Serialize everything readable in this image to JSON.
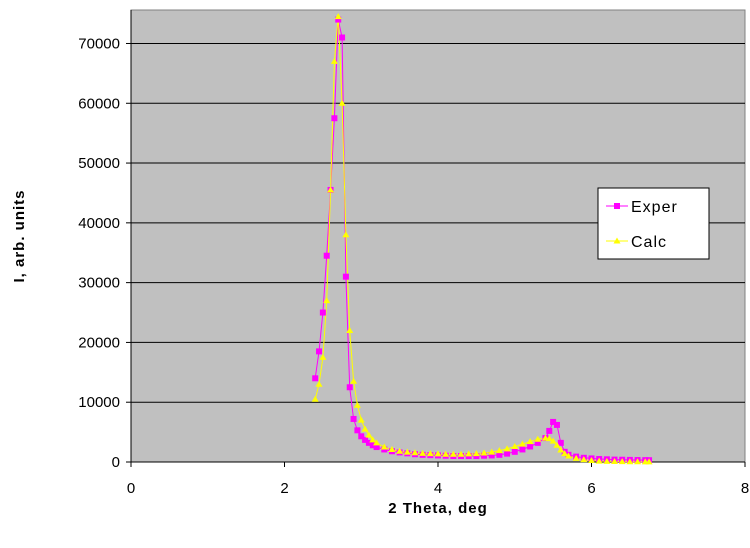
{
  "chart_data": {
    "type": "line",
    "title": "",
    "xlabel": "2 Theta, deg",
    "ylabel": "I, arb. units",
    "xlim": [
      0,
      8
    ],
    "ylim": [
      0,
      75000
    ],
    "xticks": [
      0,
      2,
      4,
      6,
      8
    ],
    "yticks": [
      0,
      10000,
      20000,
      30000,
      40000,
      50000,
      60000,
      70000
    ],
    "x_tick_labels": [
      "0",
      "2",
      "4",
      "6",
      "8"
    ],
    "y_tick_labels": [
      "0",
      "10000",
      "20000",
      "30000",
      "40000",
      "50000",
      "60000",
      "70000"
    ],
    "grid": "horizontal",
    "legend_position": "right",
    "plot_background": "#c0c0c0",
    "series": [
      {
        "name": "Exper",
        "color": "#ff00ff",
        "marker": "square",
        "x": [
          2.4,
          2.45,
          2.5,
          2.55,
          2.6,
          2.65,
          2.7,
          2.75,
          2.8,
          2.85,
          2.9,
          2.95,
          3.0,
          3.05,
          3.1,
          3.15,
          3.2,
          3.3,
          3.4,
          3.5,
          3.6,
          3.7,
          3.8,
          3.9,
          4.0,
          4.1,
          4.2,
          4.3,
          4.4,
          4.5,
          4.6,
          4.7,
          4.8,
          4.9,
          5.0,
          5.1,
          5.2,
          5.3,
          5.4,
          5.45,
          5.5,
          5.55,
          5.6,
          5.65,
          5.7,
          5.8,
          5.9,
          6.0,
          6.1,
          6.2,
          6.3,
          6.4,
          6.5,
          6.6,
          6.7,
          6.75
        ],
        "y": [
          14000,
          18500,
          25000,
          34500,
          45500,
          57500,
          74000,
          71000,
          31000,
          12500,
          7200,
          5300,
          4300,
          3700,
          3200,
          2800,
          2500,
          2100,
          1800,
          1600,
          1450,
          1300,
          1200,
          1150,
          1100,
          1050,
          1000,
          1000,
          1000,
          1000,
          1050,
          1100,
          1200,
          1400,
          1700,
          2100,
          2600,
          3200,
          4000,
          5200,
          6700,
          6200,
          3200,
          1700,
          1200,
          900,
          700,
          600,
          500,
          450,
          400,
          380,
          350,
          330,
          310,
          300
        ]
      },
      {
        "name": "Calc",
        "color": "#ffff00",
        "marker": "triangle",
        "x": [
          2.4,
          2.45,
          2.5,
          2.55,
          2.6,
          2.65,
          2.7,
          2.75,
          2.8,
          2.85,
          2.9,
          2.95,
          3.0,
          3.05,
          3.1,
          3.15,
          3.2,
          3.3,
          3.4,
          3.5,
          3.6,
          3.7,
          3.8,
          3.9,
          4.0,
          4.1,
          4.2,
          4.3,
          4.4,
          4.5,
          4.6,
          4.7,
          4.8,
          4.9,
          5.0,
          5.1,
          5.2,
          5.3,
          5.4,
          5.45,
          5.5,
          5.55,
          5.6,
          5.65,
          5.7,
          5.8,
          5.9,
          6.0,
          6.1,
          6.2,
          6.3,
          6.4,
          6.5,
          6.6,
          6.7,
          6.75
        ],
        "y": [
          10500,
          13000,
          17500,
          27000,
          45500,
          67000,
          74500,
          60000,
          38000,
          22000,
          13500,
          9500,
          7000,
          5500,
          4500,
          3700,
          3200,
          2500,
          2100,
          1800,
          1650,
          1550,
          1450,
          1400,
          1350,
          1300,
          1300,
          1300,
          1350,
          1400,
          1500,
          1650,
          1900,
          2200,
          2600,
          3000,
          3400,
          3800,
          4000,
          3900,
          3500,
          2800,
          2000,
          1400,
          1000,
          600,
          400,
          250,
          150,
          100,
          80,
          60,
          50,
          40,
          30,
          30
        ]
      }
    ]
  }
}
